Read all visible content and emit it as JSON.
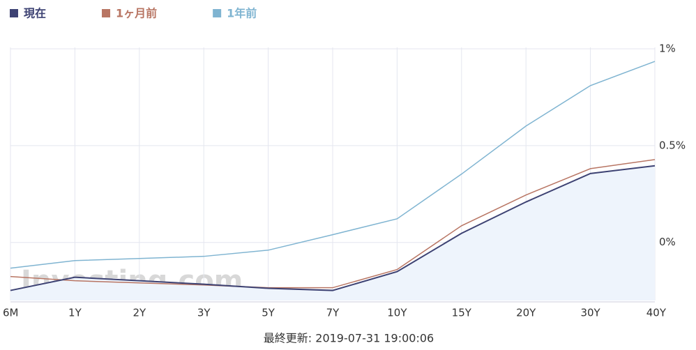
{
  "chart_data": {
    "type": "line",
    "categories": [
      "6M",
      "1Y",
      "2Y",
      "3Y",
      "5Y",
      "7Y",
      "10Y",
      "15Y",
      "20Y",
      "30Y",
      "40Y"
    ],
    "series": [
      {
        "name": "現在",
        "color": "#3d4273",
        "values": [
          -0.248,
          -0.18,
          -0.198,
          -0.216,
          -0.237,
          -0.248,
          -0.151,
          0.047,
          0.209,
          0.356,
          0.396
        ]
      },
      {
        "name": "1ヶ月前",
        "color": "#b87563",
        "values": [
          -0.176,
          -0.198,
          -0.209,
          -0.22,
          -0.234,
          -0.234,
          -0.14,
          0.086,
          0.245,
          0.381,
          0.428
        ]
      },
      {
        "name": "1年前",
        "color": "#7fb4d1",
        "values": [
          -0.133,
          -0.094,
          -0.083,
          -0.072,
          -0.04,
          0.04,
          0.122,
          0.353,
          0.601,
          0.81,
          0.935
        ]
      }
    ],
    "area_fill": "#eef4fc",
    "ylim": [
      -0.3,
      1
    ],
    "yticks": [
      {
        "value": 0,
        "label": "0%"
      },
      {
        "value": 0.5,
        "label": "0.5%"
      },
      {
        "value": 1,
        "label": "1%"
      }
    ],
    "grid": true,
    "legend": "top-left",
    "watermark": "Investing.com",
    "footer": "最終更新: 2019-07-31 19:00:06"
  }
}
